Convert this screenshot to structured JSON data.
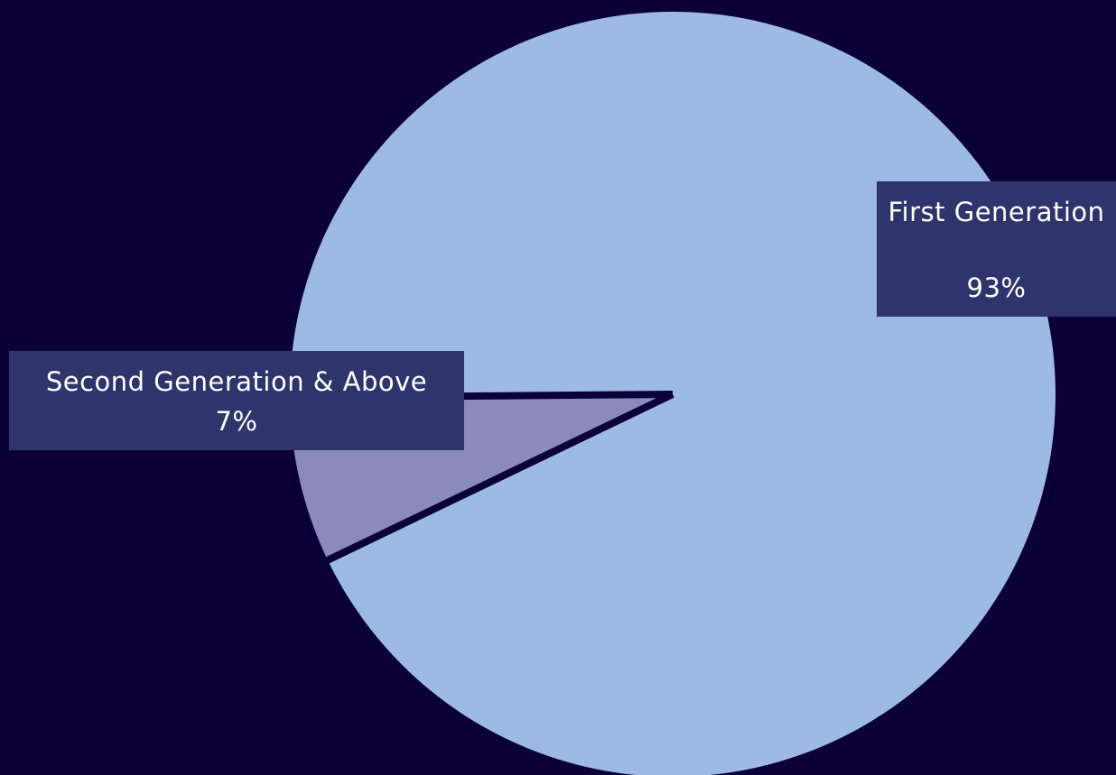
{
  "chart_data": {
    "type": "pie",
    "title": "",
    "slices": [
      {
        "label": "First Generation",
        "value": 93,
        "display": "93%",
        "color": "#9db9e6"
      },
      {
        "label": "Second Generation & Above",
        "value": 7,
        "display": "7%",
        "color": "#8b8bbb"
      }
    ],
    "background": "#0b0038",
    "label_box_color": "#30346c",
    "separator_color": "#0b0038",
    "legend": "none"
  }
}
